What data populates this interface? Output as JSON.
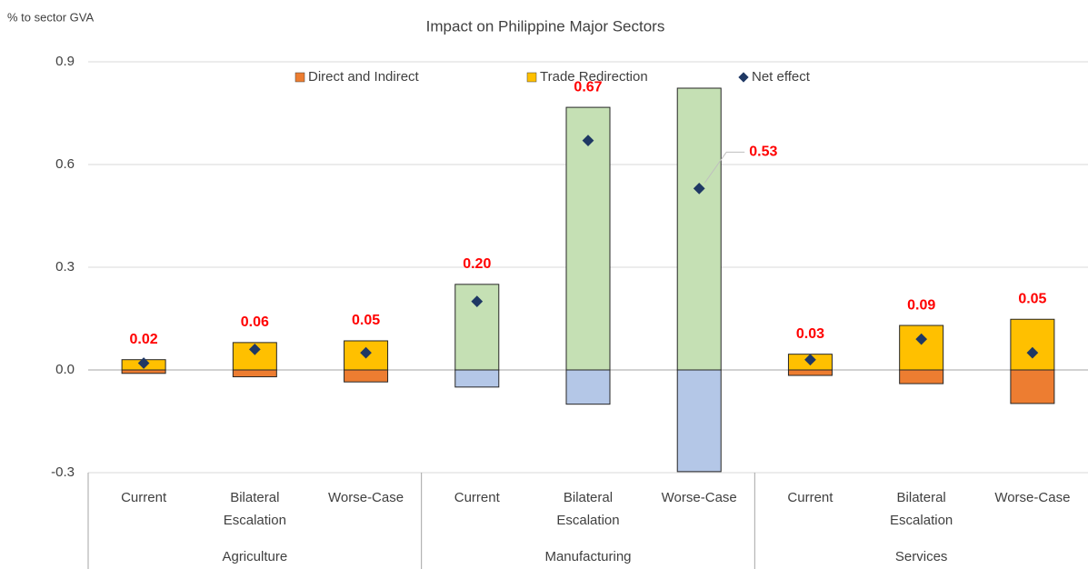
{
  "chart_data": {
    "type": "bar",
    "stacked": true,
    "title": "Impact on Philippine Major Sectors",
    "y_label": "% to sector GVA",
    "categories": [
      "Current",
      "Bilateral Escalation",
      "Worse-Case",
      "Current",
      "Bilateral Escalation",
      "Worse-Case",
      "Current",
      "Bilateral Escalation",
      "Worse-Case"
    ],
    "groups": [
      "Agriculture",
      "Manufacturing",
      "Services"
    ],
    "series": [
      {
        "name": "Direct and Indirect",
        "color": "#ED7D31",
        "colors": [
          "#ED7D31",
          "#ED7D31",
          "#ED7D31",
          "#B4C7E7",
          "#B4C7E7",
          "#B4C7E7",
          "#ED7D31",
          "#ED7D31",
          "#ED7D31"
        ],
        "values": [
          -0.01,
          -0.02,
          -0.035,
          -0.05,
          -0.1,
          -0.297,
          -0.016,
          -0.04,
          -0.098
        ]
      },
      {
        "name": "Trade Redirection",
        "color": "#FFC000",
        "colors": [
          "#FFC000",
          "#FFC000",
          "#FFC000",
          "#C5E0B4",
          "#C5E0B4",
          "#C5E0B4",
          "#FFC000",
          "#FFC000",
          "#FFC000"
        ],
        "values": [
          0.03,
          0.08,
          0.085,
          0.25,
          0.767,
          0.823,
          0.046,
          0.13,
          0.148
        ]
      },
      {
        "name": "Net effect",
        "type": "scatter",
        "marker": "diamond",
        "color": "#1F3864",
        "values": [
          0.02,
          0.06,
          0.05,
          0.2,
          0.67,
          0.53,
          0.03,
          0.09,
          0.05
        ],
        "value_labels": [
          "0.02",
          "0.06",
          "0.05",
          "0.20",
          "0.67",
          "0.53",
          "0.03",
          "0.09",
          "0.05"
        ],
        "label_color": "#FF0000"
      }
    ],
    "ylim": [
      -0.3,
      0.9
    ],
    "yticks": [
      {
        "value": -0.3,
        "label": "-0.3"
      },
      {
        "value": 0,
        "label": "0.0"
      },
      0.3,
      0.6,
      0.9
    ],
    "grid": true,
    "legend": "top"
  }
}
